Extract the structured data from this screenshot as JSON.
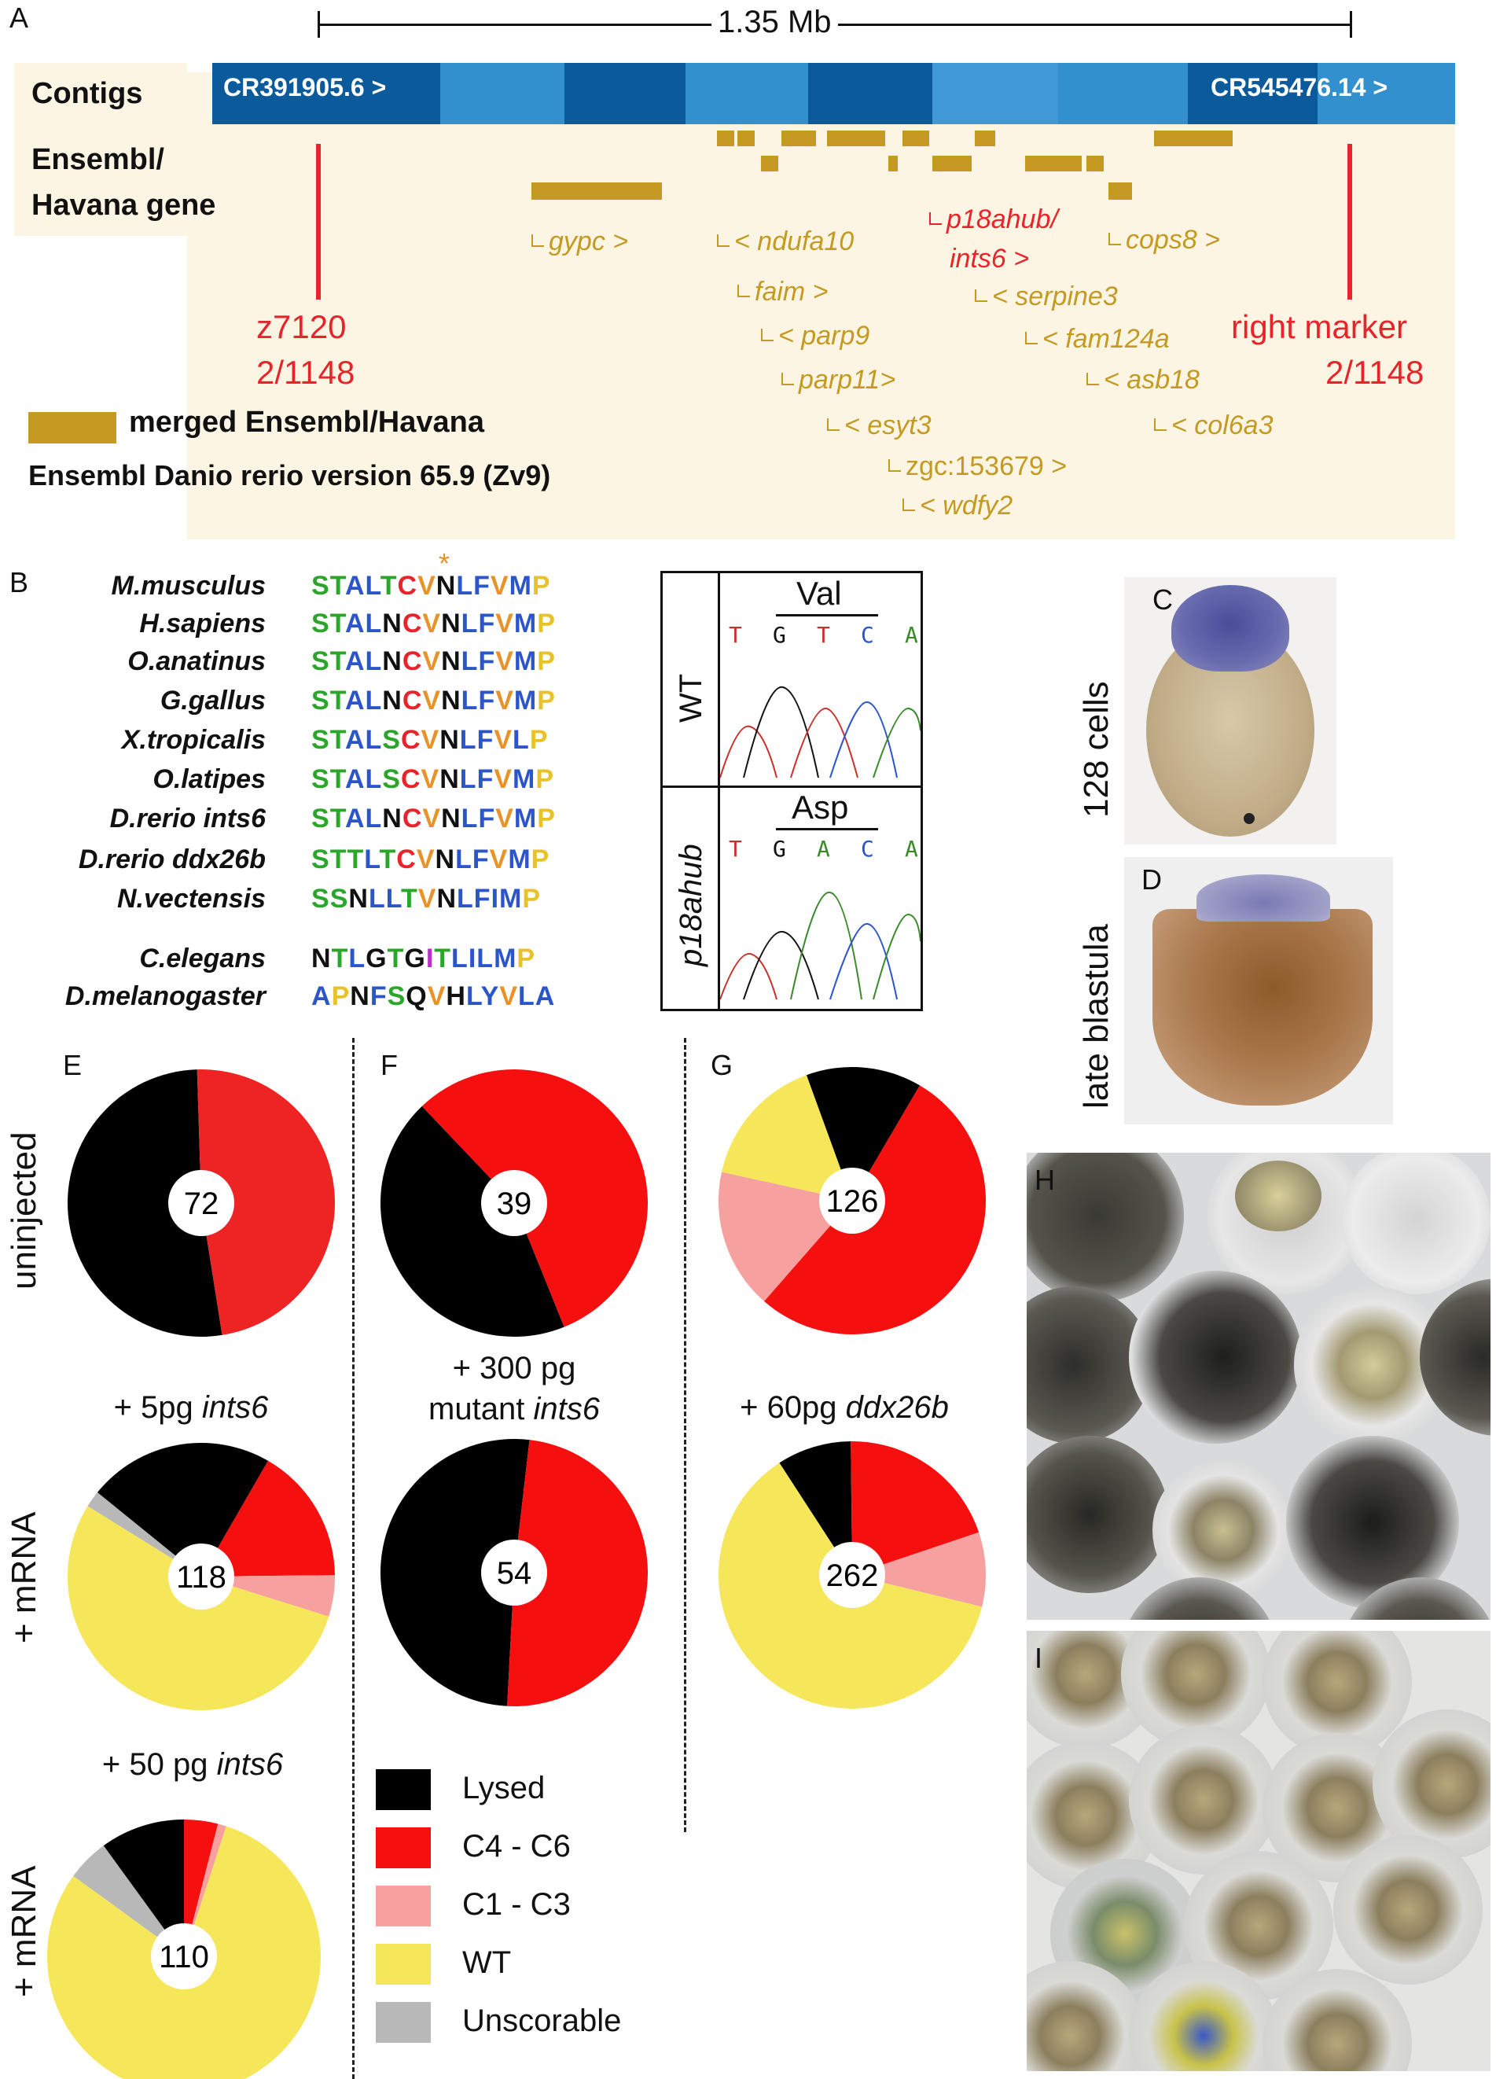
{
  "panel_letters": {
    "A": "A",
    "B": "B",
    "C": "C",
    "D": "D",
    "E": "E",
    "F": "F",
    "G": "G",
    "H": "H",
    "I": "I"
  },
  "panelA": {
    "scale_label": "1.35 Mb",
    "contigs_label": "Contigs",
    "gene_track_label_1": "Ensembl/",
    "gene_track_label_2": "Havana gene",
    "contig_left": "CR391905.6 >",
    "contig_right": "CR545476.14 >",
    "genes": {
      "gypc": "gypc >",
      "ndufa10": "< ndufa10",
      "faim": "faim >",
      "parp9": "< parp9",
      "parp11": "parp11>",
      "esyt3": "< esyt3",
      "zgc": "zgc:153679 >",
      "wdfy2": "< wdfy2",
      "p18ahub_1": "p18ahub/",
      "p18ahub_2": "ints6 >",
      "serpine3": "< serpine3",
      "fam124a": "< fam124a",
      "asb18": "< asb18",
      "col6a3": "< col6a3",
      "cops8": "cops8 >"
    },
    "left_marker_1": "z7120",
    "left_marker_2": "2/1148",
    "right_marker_1": "right marker",
    "right_marker_2": "2/1148",
    "legend_label": "merged Ensembl/Havana",
    "version": "Ensembl Danio rerio version 65.9 (Zv9)",
    "colors": {
      "gene": "#c49a22",
      "marker": "#e8242a",
      "bg": "#fdf5e4",
      "contig_dark": "#0b5a9c",
      "contig_light": "#3390cf"
    }
  },
  "panelB": {
    "asterisk": "*",
    "rows": [
      {
        "species": "M.musculus",
        "seq": "STALTCVNLFVMP"
      },
      {
        "species": "H.sapiens",
        "seq": "STALNCVNLFVMP"
      },
      {
        "species": "O.anatinus",
        "seq": "STALNCVNLFVMP"
      },
      {
        "species": "G.gallus",
        "seq": "STALNCVNLFVMP"
      },
      {
        "species": "X.tropicalis",
        "seq": "STALSCVNLFVLP"
      },
      {
        "species": "O.latipes",
        "seq": "STALSCVNLFVMP"
      },
      {
        "species": "D.rerio ints6",
        "seq": "STALNCVNLFVMP"
      },
      {
        "species": "D.rerio ddx26b",
        "seq": "STTLTCVNLFVMP"
      },
      {
        "species": "N.vectensis",
        "seq": "SSNLLTVNLFIMP"
      },
      {
        "species": "C.elegans",
        "seq": "NTLGTGITLILMP"
      },
      {
        "species": "D.melanogaster",
        "seq": "APNFSQVHLYVLA"
      }
    ],
    "chromatogram": {
      "wt_label": "WT",
      "mut_label": "p18ahub",
      "wt_codon": "Val",
      "mut_codon": "Asp",
      "wt_bases": [
        "T",
        "G",
        "T",
        "C",
        "A"
      ],
      "mut_bases": [
        "T",
        "G",
        "A",
        "C",
        "A"
      ]
    }
  },
  "panelCD": {
    "c_label": "128 cells",
    "d_label": "late blastula"
  },
  "pies": {
    "E1": {
      "count": "72"
    },
    "E2": {
      "count": "118",
      "title_pre": "+ 5pg ",
      "title_ital": "ints6"
    },
    "E3": {
      "count": "110",
      "title_pre": "+ 50 pg ",
      "title_ital": "ints6"
    },
    "F1": {
      "count": "39"
    },
    "F2": {
      "count": "54",
      "title_line1": "+ 300 pg",
      "title_line2_pre": "mutant ",
      "title_line2_ital": "ints6"
    },
    "G1": {
      "count": "126"
    },
    "G2": {
      "count": "262",
      "title_pre": "+ 60pg ",
      "title_ital": "ddx26b"
    },
    "row_label_1": "uninjected",
    "row_label_2": "+ mRNA",
    "row_label_3": "+ mRNA"
  },
  "legend": [
    {
      "label": "Lysed",
      "color": "#000000"
    },
    {
      "label": "C4 - C6",
      "color": "#f50f0f"
    },
    {
      "label": "C1 - C3",
      "color": "#f7a0a0"
    },
    {
      "label": "WT",
      "color": "#f6e65a"
    },
    {
      "label": "Unscorable",
      "color": "#b8b8b8"
    }
  ],
  "chart_data": [
    {
      "type": "pie",
      "name": "E uninjected",
      "total": 72,
      "slices": [
        {
          "label": "Lysed",
          "value": 0.52
        },
        {
          "label": "C4 - C6",
          "value": 0.48
        }
      ]
    },
    {
      "type": "pie",
      "name": "E +5pg ints6",
      "total": 118,
      "slices": [
        {
          "label": "Lysed",
          "value": 0.225
        },
        {
          "label": "C4 - C6",
          "value": 0.165
        },
        {
          "label": "C1 - C3",
          "value": 0.05
        },
        {
          "label": "WT",
          "value": 0.54
        },
        {
          "label": "Unscorable",
          "value": 0.02
        }
      ]
    },
    {
      "type": "pie",
      "name": "E +50pg ints6",
      "total": 110,
      "slices": [
        {
          "label": "Lysed",
          "value": 0.1
        },
        {
          "label": "C4 - C6",
          "value": 0.04
        },
        {
          "label": "C1 - C3",
          "value": 0.01
        },
        {
          "label": "WT",
          "value": 0.8
        },
        {
          "label": "Unscorable",
          "value": 0.05
        }
      ]
    },
    {
      "type": "pie",
      "name": "F",
      "total": 39,
      "slices": [
        {
          "label": "Lysed",
          "value": 0.44
        },
        {
          "label": "C4 - C6",
          "value": 0.56
        }
      ]
    },
    {
      "type": "pie",
      "name": "F +300pg mutant ints6",
      "total": 54,
      "slices": [
        {
          "label": "Lysed",
          "value": 0.51
        },
        {
          "label": "C4 - C6",
          "value": 0.49
        }
      ]
    },
    {
      "type": "pie",
      "name": "G",
      "total": 126,
      "slices": [
        {
          "label": "Lysed",
          "value": 0.14
        },
        {
          "label": "C4 - C6",
          "value": 0.53
        },
        {
          "label": "C1 - C3",
          "value": 0.17
        },
        {
          "label": "WT",
          "value": 0.16
        }
      ]
    },
    {
      "type": "pie",
      "name": "G +60pg ddx26b",
      "total": 262,
      "slices": [
        {
          "label": "Lysed",
          "value": 0.09
        },
        {
          "label": "C4 - C6",
          "value": 0.2
        },
        {
          "label": "C1 - C3",
          "value": 0.09
        },
        {
          "label": "WT",
          "value": 0.62
        }
      ]
    }
  ]
}
